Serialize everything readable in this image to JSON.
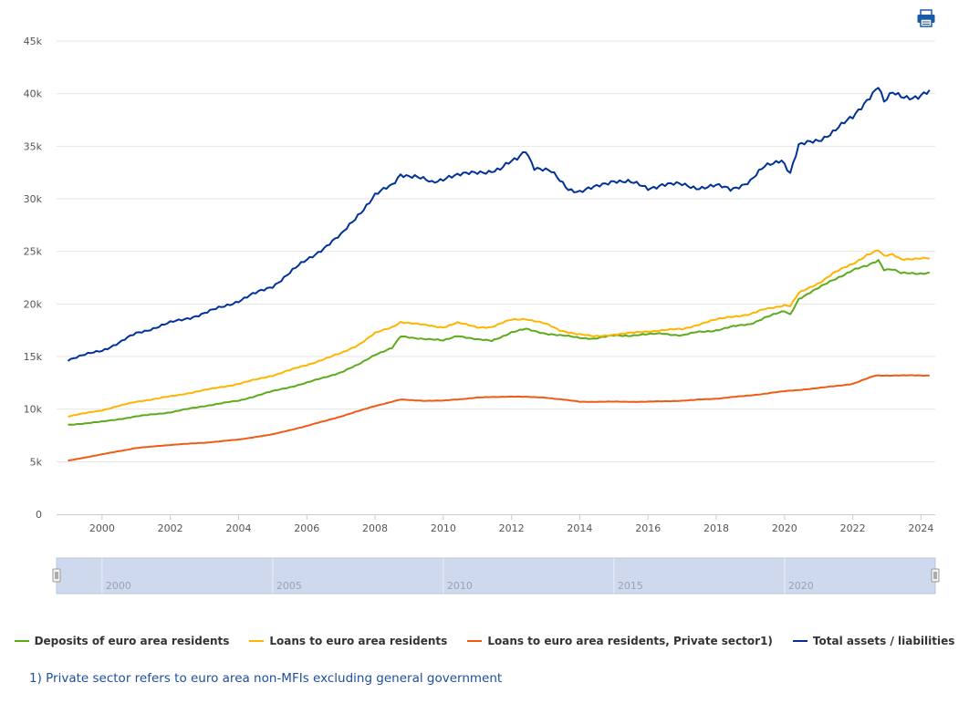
{
  "chart_data": {
    "type": "line",
    "title": "",
    "xlabel": "",
    "ylabel": "",
    "ylim": [
      0,
      45000
    ],
    "xlim": [
      "1998-09",
      "2024-06"
    ],
    "y_ticks": [
      "0",
      "5k",
      "10k",
      "15k",
      "20k",
      "25k",
      "30k",
      "35k",
      "40k",
      "45k"
    ],
    "x_ticks": [
      "2000",
      "2002",
      "2004",
      "2006",
      "2008",
      "2010",
      "2012",
      "2014",
      "2016",
      "2018",
      "2020",
      "2022",
      "2024"
    ],
    "navigator_ticks": [
      "2000",
      "2005",
      "2010",
      "2015",
      "2020"
    ],
    "grid": true,
    "legend_position": "bottom",
    "series": [
      {
        "name": "Deposits of euro area residents",
        "color": "#5daa1a",
        "x": [
          "1999-01",
          "2000-01",
          "2001-01",
          "2002-01",
          "2003-01",
          "2004-01",
          "2005-01",
          "2006-01",
          "2007-01",
          "2007-07",
          "2008-01",
          "2008-07",
          "2008-10",
          "2009-06",
          "2010-01",
          "2010-06",
          "2011-01",
          "2011-06",
          "2012-01",
          "2012-06",
          "2013-01",
          "2013-06",
          "2014-01",
          "2014-06",
          "2015-01",
          "2015-06",
          "2016-01",
          "2016-06",
          "2017-01",
          "2017-06",
          "2018-01",
          "2018-06",
          "2019-01",
          "2019-06",
          "2020-01",
          "2020-03",
          "2020-06",
          "2021-01",
          "2021-06",
          "2022-01",
          "2022-06",
          "2022-10",
          "2022-12",
          "2023-03",
          "2023-06",
          "2023-12",
          "2024-04"
        ],
        "values": [
          8500,
          8800,
          9300,
          9700,
          10300,
          10800,
          11700,
          12500,
          13500,
          14200,
          15200,
          15800,
          16900,
          16700,
          16500,
          17000,
          16600,
          16500,
          17300,
          17600,
          17200,
          17000,
          16800,
          16700,
          17000,
          17000,
          17100,
          17200,
          17000,
          17300,
          17500,
          17800,
          18100,
          18700,
          19300,
          19000,
          20500,
          21500,
          22300,
          23200,
          23600,
          24200,
          23300,
          23300,
          22900,
          22900,
          23000
        ]
      },
      {
        "name": "Loans to euro area residents",
        "color": "#ffb400",
        "x": [
          "1999-01",
          "2000-01",
          "2001-01",
          "2002-01",
          "2003-01",
          "2004-01",
          "2005-01",
          "2006-01",
          "2007-01",
          "2007-07",
          "2008-01",
          "2008-07",
          "2008-10",
          "2009-06",
          "2010-01",
          "2010-06",
          "2011-01",
          "2011-06",
          "2012-01",
          "2012-06",
          "2013-01",
          "2013-06",
          "2014-01",
          "2014-06",
          "2015-01",
          "2015-06",
          "2016-01",
          "2016-06",
          "2017-01",
          "2017-06",
          "2018-01",
          "2018-06",
          "2019-01",
          "2019-06",
          "2020-01",
          "2020-03",
          "2020-06",
          "2021-01",
          "2021-06",
          "2022-01",
          "2022-06",
          "2022-10",
          "2022-12",
          "2023-03",
          "2023-06",
          "2023-12",
          "2024-04"
        ],
        "values": [
          9300,
          9900,
          10700,
          11200,
          11800,
          12400,
          13200,
          14200,
          15300,
          16100,
          17200,
          17800,
          18300,
          18000,
          17800,
          18200,
          17800,
          17800,
          18500,
          18600,
          18100,
          17500,
          17100,
          16900,
          17100,
          17200,
          17400,
          17500,
          17600,
          18000,
          18500,
          18800,
          19000,
          19500,
          19900,
          19800,
          21000,
          22000,
          22900,
          23800,
          24700,
          25100,
          24500,
          24700,
          24300,
          24300,
          24300
        ]
      },
      {
        "name": "Loans to euro area residents, Private sector1)",
        "color": "#f05a14",
        "x": [
          "1999-01",
          "2000-01",
          "2001-01",
          "2002-01",
          "2003-01",
          "2004-01",
          "2005-01",
          "2006-01",
          "2007-01",
          "2008-01",
          "2008-10",
          "2009-06",
          "2010-01",
          "2011-01",
          "2012-01",
          "2013-01",
          "2014-01",
          "2015-01",
          "2016-01",
          "2017-01",
          "2018-01",
          "2019-01",
          "2020-01",
          "2021-01",
          "2022-01",
          "2022-09",
          "2023-03",
          "2024-04"
        ],
        "values": [
          5100,
          5700,
          6300,
          6600,
          6800,
          7100,
          7600,
          8400,
          9300,
          10300,
          10900,
          10800,
          10800,
          11100,
          11200,
          11100,
          10700,
          10700,
          10700,
          10800,
          11000,
          11300,
          11700,
          12000,
          12400,
          13200,
          13200,
          13200
        ]
      },
      {
        "name": "Total assets / liabilities",
        "color": "#003299",
        "x": [
          "1999-01",
          "2000-01",
          "2000-07",
          "2001-01",
          "2002-01",
          "2003-01",
          "2004-01",
          "2005-01",
          "2006-01",
          "2007-01",
          "2007-07",
          "2008-01",
          "2008-07",
          "2008-10",
          "2009-03",
          "2009-09",
          "2010-03",
          "2010-09",
          "2011-03",
          "2011-09",
          "2012-03",
          "2012-06",
          "2012-09",
          "2013-03",
          "2013-09",
          "2014-01",
          "2014-06",
          "2015-01",
          "2015-06",
          "2016-01",
          "2016-06",
          "2017-01",
          "2017-06",
          "2018-01",
          "2018-06",
          "2019-01",
          "2019-06",
          "2019-12",
          "2020-03",
          "2020-06",
          "2021-01",
          "2021-06",
          "2022-01",
          "2022-06",
          "2022-10",
          "2022-12",
          "2023-03",
          "2023-06",
          "2023-12",
          "2024-04"
        ],
        "values": [
          14700,
          15600,
          16300,
          17200,
          18200,
          19100,
          20300,
          21700,
          24200,
          26500,
          28500,
          30300,
          31300,
          32400,
          32100,
          31500,
          32200,
          32300,
          32600,
          32800,
          33800,
          34700,
          33000,
          32500,
          31000,
          30700,
          31000,
          31800,
          31600,
          31000,
          31400,
          31300,
          31100,
          31200,
          30900,
          31700,
          33000,
          33800,
          32500,
          35000,
          35600,
          36400,
          37700,
          39500,
          40700,
          39100,
          40000,
          39800,
          39700,
          40100
        ]
      }
    ]
  },
  "footnote": "1) Private sector refers to euro area non-MFIs excluding general government",
  "print_icon": "print-icon"
}
